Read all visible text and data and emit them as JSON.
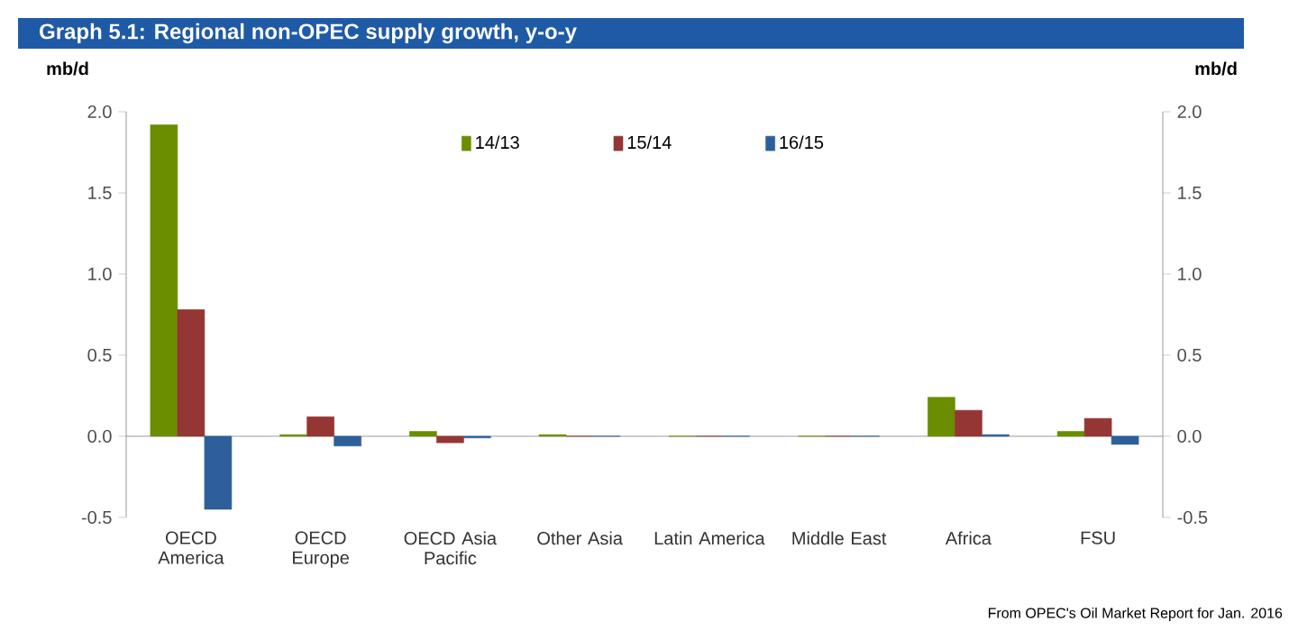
{
  "chart_data": {
    "type": "bar",
    "title": "Graph 5.1: Regional non-OPEC supply growth, y-o-y",
    "ylabel": "mb/d",
    "y2label": "mb/d",
    "categories": [
      "OECD America",
      "OECD Europe",
      "OECD Asia Pacific",
      "Other Asia",
      "Latin America",
      "Middle East",
      "Africa",
      "FSU"
    ],
    "series": [
      {
        "name": "14/13",
        "color": "#6a8e00",
        "values": [
          1.92,
          0.01,
          0.03,
          0.01,
          0,
          0,
          0.24,
          0.03
        ]
      },
      {
        "name": "15/14",
        "color": "#943634",
        "values": [
          0.78,
          0.12,
          -0.04,
          0,
          0,
          0,
          0.16,
          0.11
        ]
      },
      {
        "name": "16/15",
        "color": "#2e5f9a",
        "values": [
          -0.45,
          -0.06,
          -0.01,
          0,
          0,
          0,
          0.01,
          -0.05
        ]
      }
    ],
    "ylim": [
      -0.5,
      2.0
    ],
    "yticks": [
      {
        "value": -0.5,
        "label": "-0.5"
      },
      {
        "value": 0,
        "label": "0.0"
      },
      {
        "value": 0.5,
        "label": "0.5"
      },
      {
        "value": 1.0,
        "label": "1.0"
      },
      {
        "value": 1.5,
        "label": "1.5"
      },
      {
        "value": 2.0,
        "label": "2.0"
      }
    ],
    "y2lim": [
      -0.5,
      2.0
    ],
    "y2ticks": [
      {
        "value": -0.5,
        "label": "-0.5"
      },
      {
        "value": 0,
        "label": "0.0"
      },
      {
        "value": 0.5,
        "label": "0.5"
      },
      {
        "value": 1.0,
        "label": "1.0"
      },
      {
        "value": 1.5,
        "label": "1.5"
      },
      {
        "value": 2.0,
        "label": "2.0"
      }
    ],
    "legend": "top",
    "annotations": [
      "From OPEC's Oil Market Report for Jan. 2016"
    ]
  }
}
